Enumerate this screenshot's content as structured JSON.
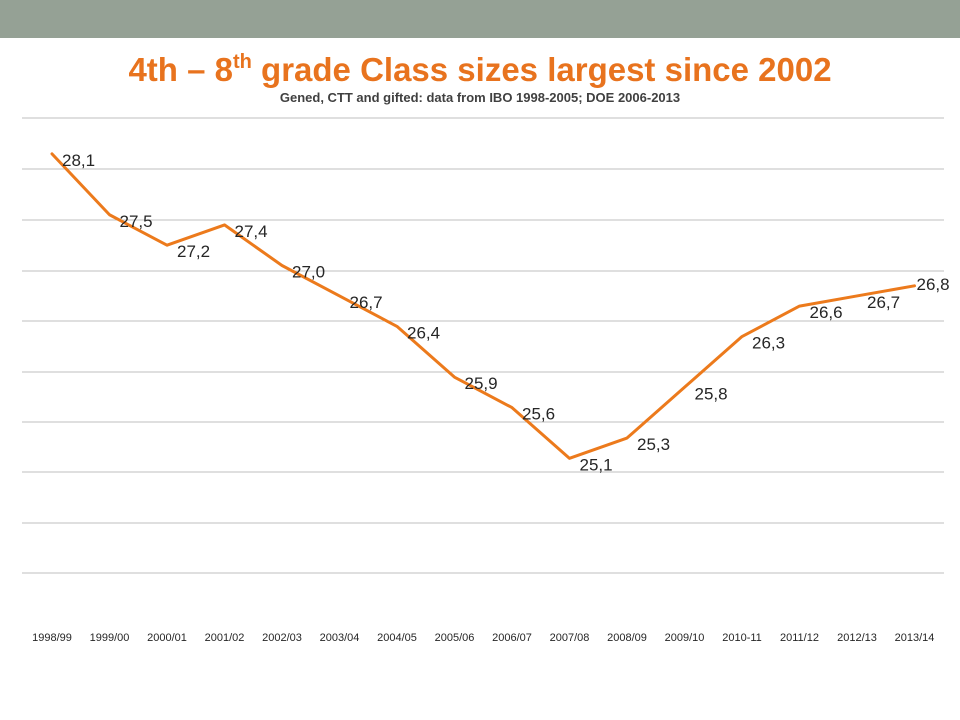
{
  "header": {
    "title_main": "4th – 8",
    "title_sup": "th",
    "title_rest": " grade Class sizes largest since 2002",
    "subtitle": "Gened, CTT and gifted: data from IBO 1998-2005; DOE 2006-2013"
  },
  "colors": {
    "line": "#ec7a1c",
    "title": "#e8731e",
    "top_bar": "#95a195"
  },
  "chart_data": {
    "type": "line",
    "title": "4th – 8th grade Class sizes largest since 2002",
    "subtitle": "Gened, CTT and gifted: data from IBO 1998-2005; DOE 2006-2013",
    "categories": [
      "1998/99",
      "1999/00",
      "2000/01",
      "2001/02",
      "2002/03",
      "2003/04",
      "2004/05",
      "2005/06",
      "2006/07",
      "2007/08",
      "2008/09",
      "2009/10",
      "2010-11",
      "2011/12",
      "2012/13",
      "2013/14"
    ],
    "values": [
      28.1,
      27.5,
      27.2,
      27.4,
      27.0,
      26.7,
      26.4,
      25.9,
      25.6,
      25.1,
      25.3,
      25.8,
      26.3,
      26.6,
      26.7,
      26.8
    ],
    "data_labels": [
      "28,1",
      "27,5",
      "27,2",
      "27,4",
      "27,0",
      "26,7",
      "26,4",
      "25,9",
      "25,6",
      "25,1",
      "25,3",
      "25,8",
      "26,3",
      "26,6",
      "26,7",
      "26,8"
    ],
    "ylim": [
      22,
      28.5
    ],
    "gridlines": true,
    "legend": false,
    "xlabel": "",
    "ylabel": ""
  }
}
